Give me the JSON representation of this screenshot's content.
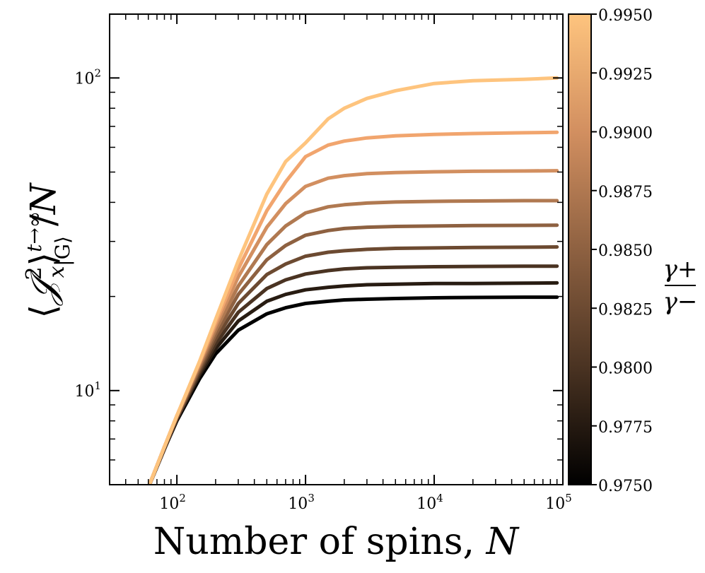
{
  "chart_data": {
    "type": "line",
    "xlabel": "Number of spins, N",
    "xlabel_text": "Number of spins, ",
    "xlabel_var": "N",
    "ylabel": "⟨𝒥x²⟩ |G⟩ t→∞ / N",
    "x_scale": "log",
    "y_scale": "log",
    "xlim": [
      30,
      100000
    ],
    "ylim": [
      5,
      160
    ],
    "x_ticks": [
      {
        "value": 100,
        "mant": "10",
        "exp": "2"
      },
      {
        "value": 1000,
        "mant": "10",
        "exp": "3"
      },
      {
        "value": 10000,
        "mant": "10",
        "exp": "4"
      },
      {
        "value": 100000,
        "mant": "10",
        "exp": "5"
      }
    ],
    "y_ticks": [
      {
        "value": 10,
        "mant": "10",
        "exp": "1"
      },
      {
        "value": 100,
        "mant": "10",
        "exp": "2"
      }
    ],
    "x": [
      50,
      60,
      80,
      100,
      150,
      200,
      300,
      500,
      700,
      1000,
      1500,
      2000,
      3000,
      5000,
      10000,
      20000,
      50000,
      90000
    ],
    "series": [
      {
        "gamma_ratio": 0.975,
        "color": "#000000",
        "values": [
          4.1,
          4.9,
          6.5,
          8.0,
          10.9,
          13.1,
          15.6,
          17.6,
          18.4,
          19.0,
          19.3,
          19.5,
          19.6,
          19.7,
          19.8,
          19.85,
          19.9,
          19.9
        ]
      },
      {
        "gamma_ratio": 0.9775,
        "color": "#281c12",
        "values": [
          4.1,
          4.9,
          6.5,
          8.1,
          11.2,
          13.6,
          16.7,
          19.3,
          20.3,
          21.0,
          21.4,
          21.6,
          21.8,
          21.9,
          22.0,
          22.0,
          22.05,
          22.1
        ]
      },
      {
        "gamma_ratio": 0.98,
        "color": "#4a3322",
        "values": [
          4.1,
          4.9,
          6.5,
          8.1,
          11.4,
          14.1,
          17.8,
          21.2,
          22.6,
          23.6,
          24.2,
          24.5,
          24.7,
          24.8,
          24.9,
          24.95,
          25.0,
          25.0
        ]
      },
      {
        "gamma_ratio": 0.9825,
        "color": "#6c4a31",
        "values": [
          4.1,
          4.9,
          6.6,
          8.2,
          11.6,
          14.6,
          19.0,
          23.5,
          25.4,
          26.9,
          27.7,
          28.0,
          28.3,
          28.5,
          28.6,
          28.7,
          28.75,
          28.8
        ]
      },
      {
        "gamma_ratio": 0.985,
        "color": "#8e6141",
        "values": [
          4.1,
          4.9,
          6.6,
          8.2,
          11.8,
          15.1,
          20.3,
          26.2,
          29.1,
          31.4,
          32.5,
          33.0,
          33.3,
          33.5,
          33.6,
          33.7,
          33.75,
          33.8
        ]
      },
      {
        "gamma_ratio": 0.9875,
        "color": "#b07951",
        "values": [
          4.1,
          4.9,
          6.6,
          8.3,
          12.0,
          15.6,
          21.6,
          29.3,
          33.6,
          37.0,
          38.7,
          39.3,
          39.8,
          40.1,
          40.3,
          40.4,
          40.5,
          40.5
        ]
      },
      {
        "gamma_ratio": 0.99,
        "color": "#d28f60",
        "values": [
          4.1,
          4.9,
          6.6,
          8.3,
          12.2,
          16.1,
          23.1,
          33.3,
          39.6,
          45.0,
          47.8,
          48.7,
          49.4,
          49.8,
          50.1,
          50.3,
          50.4,
          50.5
        ]
      },
      {
        "gamma_ratio": 0.9925,
        "color": "#f1a56e",
        "values": [
          4.1,
          4.9,
          6.6,
          8.3,
          12.3,
          16.5,
          24.5,
          37.6,
          46.5,
          56.0,
          61.0,
          62.8,
          64.3,
          65.3,
          66.0,
          66.4,
          66.8,
          67.0
        ]
      },
      {
        "gamma_ratio": 0.995,
        "color": "#fec47e",
        "values": [
          4.1,
          4.9,
          6.6,
          8.3,
          12.4,
          16.9,
          26.0,
          42.5,
          54.0,
          62.0,
          74.0,
          80.0,
          86.0,
          91.0,
          96.0,
          98.0,
          99.0,
          100.0
        ]
      }
    ],
    "colorbar": {
      "label_num": "γ+",
      "label_den": "γ−",
      "min": 0.975,
      "max": 0.995,
      "ticks": [
        "0.9750",
        "0.9775",
        "0.9800",
        "0.9825",
        "0.9850",
        "0.9875",
        "0.9900",
        "0.9925",
        "0.9950"
      ],
      "colors": [
        "#000000",
        "#4a3322",
        "#8e6141",
        "#d28f60",
        "#fec47e"
      ]
    }
  }
}
